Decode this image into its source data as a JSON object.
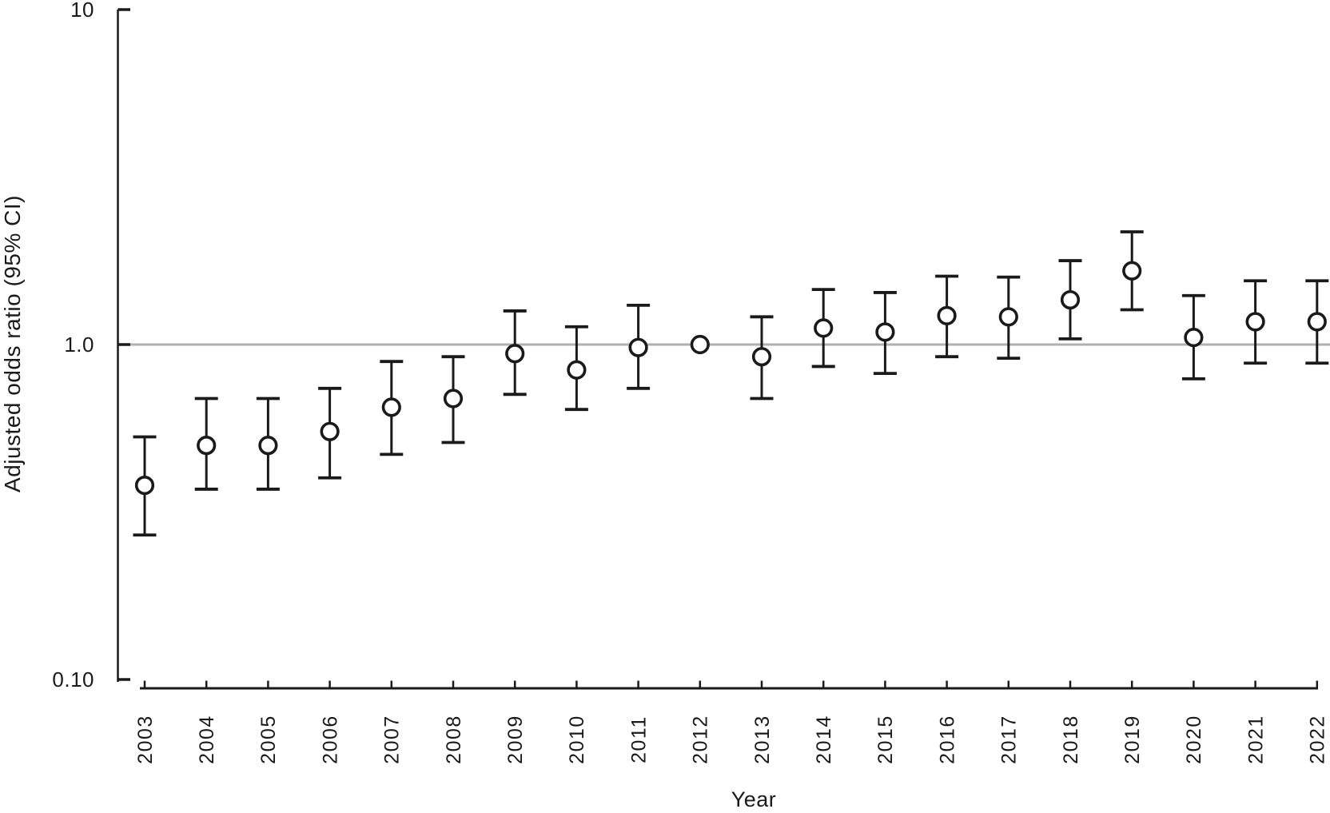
{
  "chart_data": {
    "type": "scatter",
    "subtype": "forest-errorbar",
    "title": "",
    "xlabel": "Year",
    "ylabel": "Adjusted odds ratio (95% CI)",
    "y_scale": "log10",
    "ylim": [
      0.1,
      10
    ],
    "y_ticks": [
      {
        "value": 10,
        "label": "10"
      },
      {
        "value": 1.0,
        "label": "1.0"
      },
      {
        "value": 0.1,
        "label": "0.10"
      }
    ],
    "reference_line_y": 1.0,
    "grid": "off",
    "legend": "none",
    "categories": [
      "2003",
      "2004",
      "2005",
      "2006",
      "2007",
      "2008",
      "2009",
      "2010",
      "2011",
      "2012",
      "2013",
      "2014",
      "2015",
      "2016",
      "2017",
      "2018",
      "2019",
      "2020",
      "2021",
      "2022"
    ],
    "series": [
      {
        "name": "Adjusted odds ratio (95% CI)",
        "marker": "open-circle",
        "points": [
          {
            "year": "2003",
            "or": 0.38,
            "ci_low": 0.27,
            "ci_high": 0.53
          },
          {
            "year": "2004",
            "or": 0.5,
            "ci_low": 0.37,
            "ci_high": 0.69
          },
          {
            "year": "2005",
            "or": 0.5,
            "ci_low": 0.37,
            "ci_high": 0.69
          },
          {
            "year": "2006",
            "or": 0.55,
            "ci_low": 0.4,
            "ci_high": 0.74
          },
          {
            "year": "2007",
            "or": 0.65,
            "ci_low": 0.47,
            "ci_high": 0.89
          },
          {
            "year": "2008",
            "or": 0.69,
            "ci_low": 0.51,
            "ci_high": 0.92
          },
          {
            "year": "2009",
            "or": 0.94,
            "ci_low": 0.71,
            "ci_high": 1.26
          },
          {
            "year": "2010",
            "or": 0.84,
            "ci_low": 0.64,
            "ci_high": 1.13
          },
          {
            "year": "2011",
            "or": 0.98,
            "ci_low": 0.74,
            "ci_high": 1.31
          },
          {
            "year": "2012",
            "or": 1.0,
            "ci_low": null,
            "ci_high": null,
            "note": "no CI whiskers shown (reference)"
          },
          {
            "year": "2013",
            "or": 0.92,
            "ci_low": 0.69,
            "ci_high": 1.21
          },
          {
            "year": "2014",
            "or": 1.12,
            "ci_low": 0.86,
            "ci_high": 1.46
          },
          {
            "year": "2015",
            "or": 1.09,
            "ci_low": 0.82,
            "ci_high": 1.43
          },
          {
            "year": "2016",
            "or": 1.22,
            "ci_low": 0.92,
            "ci_high": 1.6
          },
          {
            "year": "2017",
            "or": 1.21,
            "ci_low": 0.91,
            "ci_high": 1.59
          },
          {
            "year": "2018",
            "or": 1.36,
            "ci_low": 1.04,
            "ci_high": 1.78
          },
          {
            "year": "2019",
            "or": 1.66,
            "ci_low": 1.27,
            "ci_high": 2.17
          },
          {
            "year": "2020",
            "or": 1.05,
            "ci_low": 0.79,
            "ci_high": 1.4
          },
          {
            "year": "2021",
            "or": 1.17,
            "ci_low": 0.88,
            "ci_high": 1.55
          },
          {
            "year": "2022",
            "or": 1.17,
            "ci_low": 0.88,
            "ci_high": 1.55
          }
        ]
      }
    ]
  },
  "colors": {
    "axis": "#1a1a1a",
    "text": "#1a1a1a",
    "reference_line": "#b0b0b0",
    "marker_fill": "#ffffff",
    "background": "#ffffff"
  }
}
